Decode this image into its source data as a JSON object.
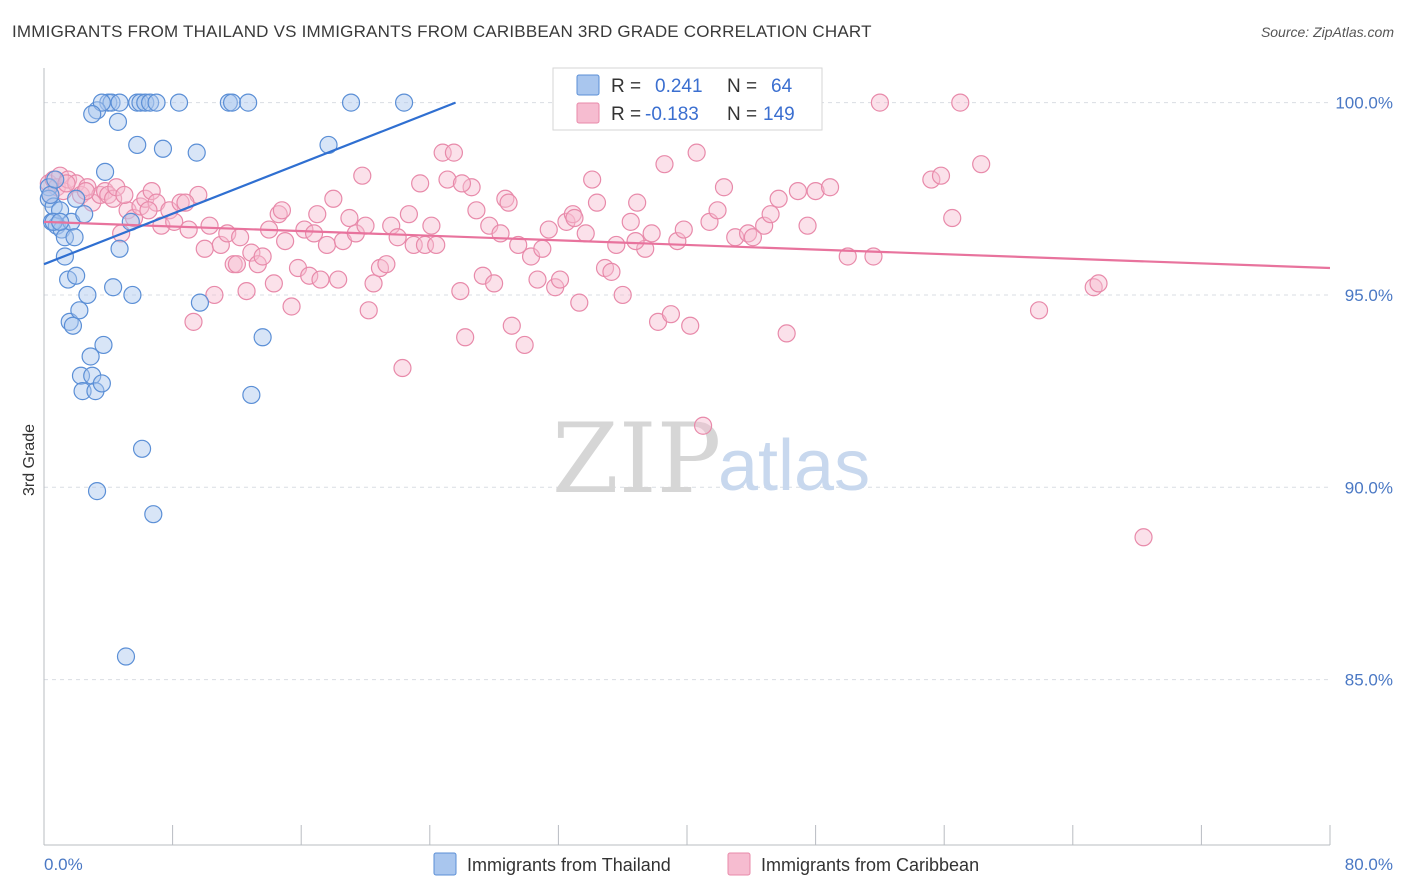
{
  "title": "IMMIGRANTS FROM THAILAND VS IMMIGRANTS FROM CARIBBEAN 3RD GRADE CORRELATION CHART",
  "source": "Source: ZipAtlas.com",
  "watermark": {
    "zip": "ZIP",
    "atlas": "atlas"
  },
  "colors": {
    "thailand_fill": "#a9c6ee",
    "thailand_stroke": "#5b8fd6",
    "thailand_line": "#2f6fd1",
    "caribbean_fill": "#f6bcd0",
    "caribbean_stroke": "#e88aaa",
    "caribbean_line": "#e8739d",
    "grid": "#d9dde3",
    "tick_label": "#4a78c4"
  },
  "legend_box": {
    "r_label": "R =",
    "n_label": "N =",
    "rows": [
      {
        "r": "0.241",
        "n": "64"
      },
      {
        "r": "-0.183",
        "n": "149"
      }
    ]
  },
  "chart_data": {
    "type": "scatter",
    "title": "IMMIGRANTS FROM THAILAND VS IMMIGRANTS FROM CARIBBEAN 3RD GRADE CORRELATION CHART",
    "xlabel": "",
    "ylabel": "3rd Grade",
    "xlim": [
      0,
      80
    ],
    "ylim": [
      80.7,
      100.9
    ],
    "x_tick_labels": [
      "0.0%",
      "80.0%"
    ],
    "y_ticks": [
      100,
      95,
      90,
      85
    ],
    "y_tick_labels": [
      "100.0%",
      "95.0%",
      "90.0%",
      "85.0%"
    ],
    "grid": "horizontal dashed",
    "legend_position": "bottom-center",
    "series": [
      {
        "name": "Immigrants from Thailand",
        "trend": {
          "x": [
            0,
            25.6
          ],
          "y": [
            95.8,
            100.0
          ]
        },
        "points": [
          [
            0.3,
            97.8
          ],
          [
            0.3,
            97.5
          ],
          [
            0.5,
            96.9
          ],
          [
            0.6,
            97.3
          ],
          [
            0.8,
            96.8
          ],
          [
            1.0,
            97.2
          ],
          [
            1.1,
            96.7
          ],
          [
            1.3,
            96.0
          ],
          [
            1.3,
            96.5
          ],
          [
            1.5,
            95.4
          ],
          [
            1.6,
            94.3
          ],
          [
            1.7,
            96.9
          ],
          [
            1.8,
            94.2
          ],
          [
            1.9,
            96.5
          ],
          [
            2.0,
            97.5
          ],
          [
            2.0,
            95.5
          ],
          [
            2.2,
            94.6
          ],
          [
            2.3,
            92.9
          ],
          [
            2.4,
            92.5
          ],
          [
            2.5,
            97.1
          ],
          [
            2.7,
            95.0
          ],
          [
            2.9,
            93.4
          ],
          [
            3.0,
            92.9
          ],
          [
            3.2,
            92.5
          ],
          [
            3.3,
            89.9
          ],
          [
            3.6,
            92.7
          ],
          [
            3.7,
            93.7
          ],
          [
            3.8,
            98.2
          ],
          [
            4.0,
            100.0
          ],
          [
            4.2,
            100.0
          ],
          [
            4.3,
            95.2
          ],
          [
            4.6,
            99.5
          ],
          [
            4.7,
            96.2
          ],
          [
            4.7,
            100.0
          ],
          [
            5.1,
            85.6
          ],
          [
            5.4,
            96.9
          ],
          [
            5.5,
            95.0
          ],
          [
            5.8,
            100.0
          ],
          [
            5.8,
            98.9
          ],
          [
            6.0,
            100.0
          ],
          [
            6.1,
            91.0
          ],
          [
            6.3,
            100.0
          ],
          [
            6.6,
            100.0
          ],
          [
            6.8,
            89.3
          ],
          [
            7.0,
            100.0
          ],
          [
            7.4,
            98.8
          ],
          [
            3.3,
            99.8
          ],
          [
            3.6,
            100.0
          ],
          [
            8.4,
            100.0
          ],
          [
            9.5,
            98.7
          ],
          [
            9.7,
            94.8
          ],
          [
            11.5,
            100.0
          ],
          [
            11.7,
            100.0
          ],
          [
            12.7,
            100.0
          ],
          [
            12.9,
            92.4
          ],
          [
            13.6,
            93.9
          ],
          [
            17.7,
            98.9
          ],
          [
            19.1,
            100.0
          ],
          [
            22.4,
            100.0
          ],
          [
            0.4,
            97.6
          ],
          [
            0.6,
            96.9
          ],
          [
            0.7,
            98.0
          ],
          [
            1.0,
            96.9
          ],
          [
            3.0,
            99.7
          ]
        ]
      },
      {
        "name": "Immigrants from Caribbean",
        "trend": {
          "x": [
            0,
            80
          ],
          "y": [
            96.9,
            95.7
          ]
        },
        "points": [
          [
            0.3,
            97.9
          ],
          [
            0.4,
            97.6
          ],
          [
            0.6,
            98.0
          ],
          [
            0.8,
            97.8
          ],
          [
            1.0,
            98.1
          ],
          [
            1.2,
            97.7
          ],
          [
            1.5,
            98.0
          ],
          [
            2.0,
            97.9
          ],
          [
            2.3,
            97.6
          ],
          [
            2.7,
            97.8
          ],
          [
            3.0,
            97.4
          ],
          [
            3.5,
            97.6
          ],
          [
            3.8,
            97.7
          ],
          [
            4.0,
            97.6
          ],
          [
            4.3,
            97.5
          ],
          [
            4.5,
            97.8
          ],
          [
            4.8,
            96.6
          ],
          [
            5.2,
            97.2
          ],
          [
            5.6,
            97.0
          ],
          [
            6.0,
            97.3
          ],
          [
            6.3,
            97.5
          ],
          [
            6.7,
            97.7
          ],
          [
            7.0,
            97.4
          ],
          [
            7.3,
            96.8
          ],
          [
            7.8,
            97.2
          ],
          [
            8.1,
            96.9
          ],
          [
            8.5,
            97.4
          ],
          [
            9.0,
            96.7
          ],
          [
            9.3,
            94.3
          ],
          [
            9.6,
            97.6
          ],
          [
            10.0,
            96.2
          ],
          [
            10.3,
            96.8
          ],
          [
            10.6,
            95.0
          ],
          [
            11.0,
            96.3
          ],
          [
            11.4,
            96.6
          ],
          [
            11.8,
            95.8
          ],
          [
            12.2,
            96.5
          ],
          [
            12.6,
            95.1
          ],
          [
            12.9,
            96.1
          ],
          [
            13.3,
            95.8
          ],
          [
            13.6,
            96.0
          ],
          [
            14.0,
            96.7
          ],
          [
            14.3,
            95.3
          ],
          [
            14.6,
            97.1
          ],
          [
            15.0,
            96.4
          ],
          [
            15.4,
            94.7
          ],
          [
            15.8,
            95.7
          ],
          [
            16.2,
            96.7
          ],
          [
            16.5,
            95.5
          ],
          [
            16.8,
            96.6
          ],
          [
            17.2,
            95.4
          ],
          [
            17.6,
            96.3
          ],
          [
            18.0,
            97.5
          ],
          [
            18.3,
            95.4
          ],
          [
            18.6,
            96.4
          ],
          [
            19.0,
            97.0
          ],
          [
            19.4,
            96.6
          ],
          [
            19.8,
            98.1
          ],
          [
            20.2,
            94.6
          ],
          [
            20.5,
            95.3
          ],
          [
            20.9,
            95.7
          ],
          [
            21.3,
            95.8
          ],
          [
            21.6,
            96.8
          ],
          [
            22.0,
            96.5
          ],
          [
            22.3,
            93.1
          ],
          [
            22.7,
            97.1
          ],
          [
            23.0,
            96.3
          ],
          [
            23.4,
            97.9
          ],
          [
            23.7,
            96.3
          ],
          [
            24.1,
            96.8
          ],
          [
            24.4,
            96.3
          ],
          [
            24.8,
            98.7
          ],
          [
            25.1,
            98.0
          ],
          [
            25.5,
            98.7
          ],
          [
            25.9,
            95.1
          ],
          [
            26.2,
            93.9
          ],
          [
            26.6,
            97.8
          ],
          [
            26.9,
            97.2
          ],
          [
            27.3,
            95.5
          ],
          [
            27.7,
            96.8
          ],
          [
            28.0,
            95.3
          ],
          [
            28.4,
            96.6
          ],
          [
            28.7,
            97.5
          ],
          [
            29.1,
            94.2
          ],
          [
            29.5,
            96.3
          ],
          [
            29.9,
            93.7
          ],
          [
            30.3,
            96.0
          ],
          [
            30.7,
            95.4
          ],
          [
            31.0,
            96.2
          ],
          [
            31.4,
            96.7
          ],
          [
            31.8,
            95.2
          ],
          [
            32.1,
            95.4
          ],
          [
            32.5,
            96.9
          ],
          [
            32.9,
            97.1
          ],
          [
            33.3,
            94.8
          ],
          [
            33.7,
            96.6
          ],
          [
            34.1,
            98.0
          ],
          [
            34.4,
            97.4
          ],
          [
            34.9,
            95.7
          ],
          [
            35.3,
            95.6
          ],
          [
            35.6,
            96.3
          ],
          [
            36.0,
            95.0
          ],
          [
            36.5,
            96.9
          ],
          [
            36.9,
            97.4
          ],
          [
            37.4,
            96.2
          ],
          [
            37.8,
            96.6
          ],
          [
            38.2,
            94.3
          ],
          [
            38.6,
            98.4
          ],
          [
            39.0,
            94.5
          ],
          [
            39.4,
            96.4
          ],
          [
            39.8,
            96.7
          ],
          [
            40.2,
            94.2
          ],
          [
            40.6,
            98.7
          ],
          [
            41.0,
            91.6
          ],
          [
            41.4,
            96.9
          ],
          [
            41.9,
            97.2
          ],
          [
            42.3,
            97.8
          ],
          [
            43.0,
            96.5
          ],
          [
            43.8,
            96.6
          ],
          [
            44.1,
            96.5
          ],
          [
            44.8,
            96.8
          ],
          [
            45.2,
            97.1
          ],
          [
            45.7,
            97.5
          ],
          [
            46.2,
            94.0
          ],
          [
            46.9,
            97.7
          ],
          [
            47.5,
            96.8
          ],
          [
            48.0,
            97.7
          ],
          [
            48.9,
            97.8
          ],
          [
            50.0,
            96.0
          ],
          [
            51.6,
            96.0
          ],
          [
            52.0,
            100.0
          ],
          [
            55.2,
            98.0
          ],
          [
            55.8,
            98.1
          ],
          [
            56.5,
            97.0
          ],
          [
            57.0,
            100.0
          ],
          [
            58.3,
            98.4
          ],
          [
            61.9,
            94.6
          ],
          [
            65.3,
            95.2
          ],
          [
            65.6,
            95.3
          ],
          [
            68.4,
            88.7
          ],
          [
            1.4,
            97.9
          ],
          [
            2.6,
            97.7
          ],
          [
            5.0,
            97.6
          ],
          [
            6.5,
            97.2
          ],
          [
            8.8,
            97.4
          ],
          [
            12.0,
            95.8
          ],
          [
            14.8,
            97.2
          ],
          [
            17.0,
            97.1
          ],
          [
            20.0,
            96.8
          ],
          [
            26.0,
            97.9
          ],
          [
            28.9,
            97.4
          ],
          [
            33.0,
            97.0
          ],
          [
            36.8,
            96.4
          ]
        ]
      }
    ]
  }
}
